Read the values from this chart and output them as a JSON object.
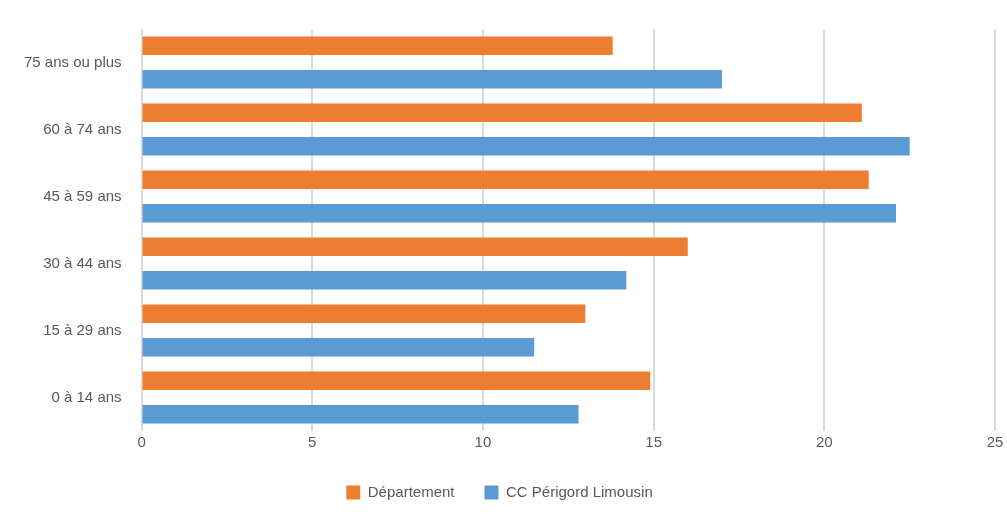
{
  "chart_data": {
    "type": "bar",
    "orientation": "horizontal",
    "categories": [
      "75 ans ou plus",
      "60 à 74 ans",
      "45 à 59 ans",
      "30 à 44 ans",
      "15 à 29 ans",
      "0 à 14 ans"
    ],
    "series": [
      {
        "name": "Département",
        "color": "#ed7d31",
        "values": [
          13.8,
          21.1,
          21.3,
          16.0,
          13.0,
          14.9
        ]
      },
      {
        "name": "CC Périgord Limousin",
        "color": "#5b9bd5",
        "values": [
          17.0,
          22.5,
          22.1,
          14.2,
          11.5,
          12.8
        ]
      }
    ],
    "xlim": [
      0,
      25
    ],
    "xticks": [
      0,
      5,
      10,
      15,
      20,
      25
    ],
    "grid": "x",
    "legend": "bottom"
  }
}
